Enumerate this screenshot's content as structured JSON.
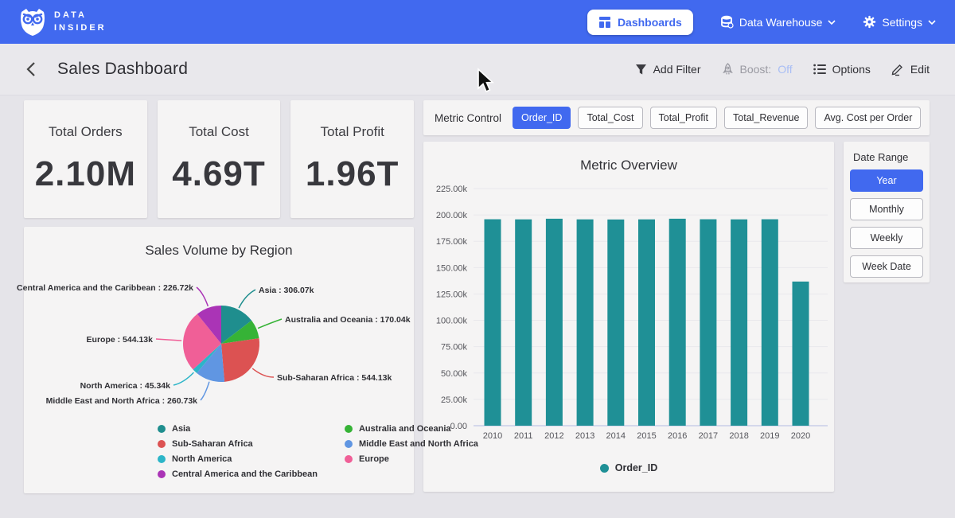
{
  "navbar": {
    "brand_line1": "DATA",
    "brand_line2": "INSIDER",
    "dashboards_label": "Dashboards",
    "data_warehouse_label": "Data Warehouse",
    "settings_label": "Settings"
  },
  "header": {
    "title": "Sales Dashboard",
    "add_filter_label": "Add Filter",
    "boost_label": "Boost:",
    "boost_value": "Off",
    "options_label": "Options",
    "edit_label": "Edit"
  },
  "kpis": [
    {
      "label": "Total Orders",
      "value": "2.10M"
    },
    {
      "label": "Total Cost",
      "value": "4.69T"
    },
    {
      "label": "Total Profit",
      "value": "1.96T"
    }
  ],
  "metric_control": {
    "label": "Metric Control",
    "options": [
      {
        "label": "Order_ID",
        "selected": true
      },
      {
        "label": "Total_Cost",
        "selected": false
      },
      {
        "label": "Total_Profit",
        "selected": false
      },
      {
        "label": "Total_Revenue",
        "selected": false
      },
      {
        "label": "Avg. Cost per Order",
        "selected": false
      }
    ]
  },
  "date_range": {
    "label": "Date Range",
    "options": [
      {
        "label": "Year",
        "selected": true
      },
      {
        "label": "Monthly",
        "selected": false
      },
      {
        "label": "Weekly",
        "selected": false
      },
      {
        "label": "Week Date",
        "selected": false
      }
    ]
  },
  "colors": {
    "navbar_blue": "#4169ef",
    "accent_blue": "#4169ef",
    "page_bg": "#e5e4e9",
    "card_bg": "#f5f4f4",
    "bar_teal": "#1f9096",
    "boost_off": "#a9bef5",
    "axis_line": "#c9cfe8",
    "gridline": "#e9e8ec"
  },
  "chart_data": [
    {
      "type": "bar",
      "title": "Metric Overview",
      "categories": [
        "2010",
        "2011",
        "2012",
        "2013",
        "2014",
        "2015",
        "2016",
        "2017",
        "2018",
        "2019",
        "2020"
      ],
      "series": [
        {
          "name": "Order_ID",
          "color": "#1f9096",
          "values": [
            195900,
            195800,
            196400,
            195800,
            195700,
            195800,
            196400,
            195900,
            195800,
            195900,
            136800
          ]
        }
      ],
      "xlabel": "",
      "ylabel": "",
      "ylim": [
        0,
        225000
      ],
      "ytick_labels": [
        "0.00",
        "25.00k",
        "50.00k",
        "75.00k",
        "100.00k",
        "125.00k",
        "150.00k",
        "175.00k",
        "200.00k",
        "225.00k"
      ],
      "grid": true,
      "legend": [
        "Order_ID"
      ],
      "legend_position": "bottom"
    },
    {
      "type": "pie",
      "title": "Sales Volume by Region",
      "slices": [
        {
          "label": "Asia",
          "value": 306070,
          "display": "Asia : 306.07k",
          "color": "#1f8e8e"
        },
        {
          "label": "Australia and Oceania",
          "value": 170040,
          "display": "Australia and Oceania : 170.04k",
          "color": "#36b336"
        },
        {
          "label": "Sub-Saharan Africa",
          "value": 544130,
          "display": "Sub-Saharan Africa : 544.13k",
          "color": "#dc5252"
        },
        {
          "label": "Middle East and North Africa",
          "value": 260730,
          "display": "Middle East and North Africa : 260.73k",
          "color": "#6096e2"
        },
        {
          "label": "North America",
          "value": 45340,
          "display": "North America : 45.34k",
          "color": "#2cb5c8"
        },
        {
          "label": "Europe",
          "value": 544130,
          "display": "Europe : 544.13k",
          "color": "#f05f97"
        },
        {
          "label": "Central America and the Caribbean",
          "value": 226720,
          "display": "Central America and the Caribbean : 226.72k",
          "color": "#aa34b6"
        }
      ],
      "legend_columns": [
        [
          "Asia",
          "Sub-Saharan Africa",
          "North America",
          "Central America and the Caribbean"
        ],
        [
          "Australia and Oceania",
          "Middle East and North Africa",
          "Europe"
        ]
      ],
      "legend_position": "bottom"
    }
  ]
}
